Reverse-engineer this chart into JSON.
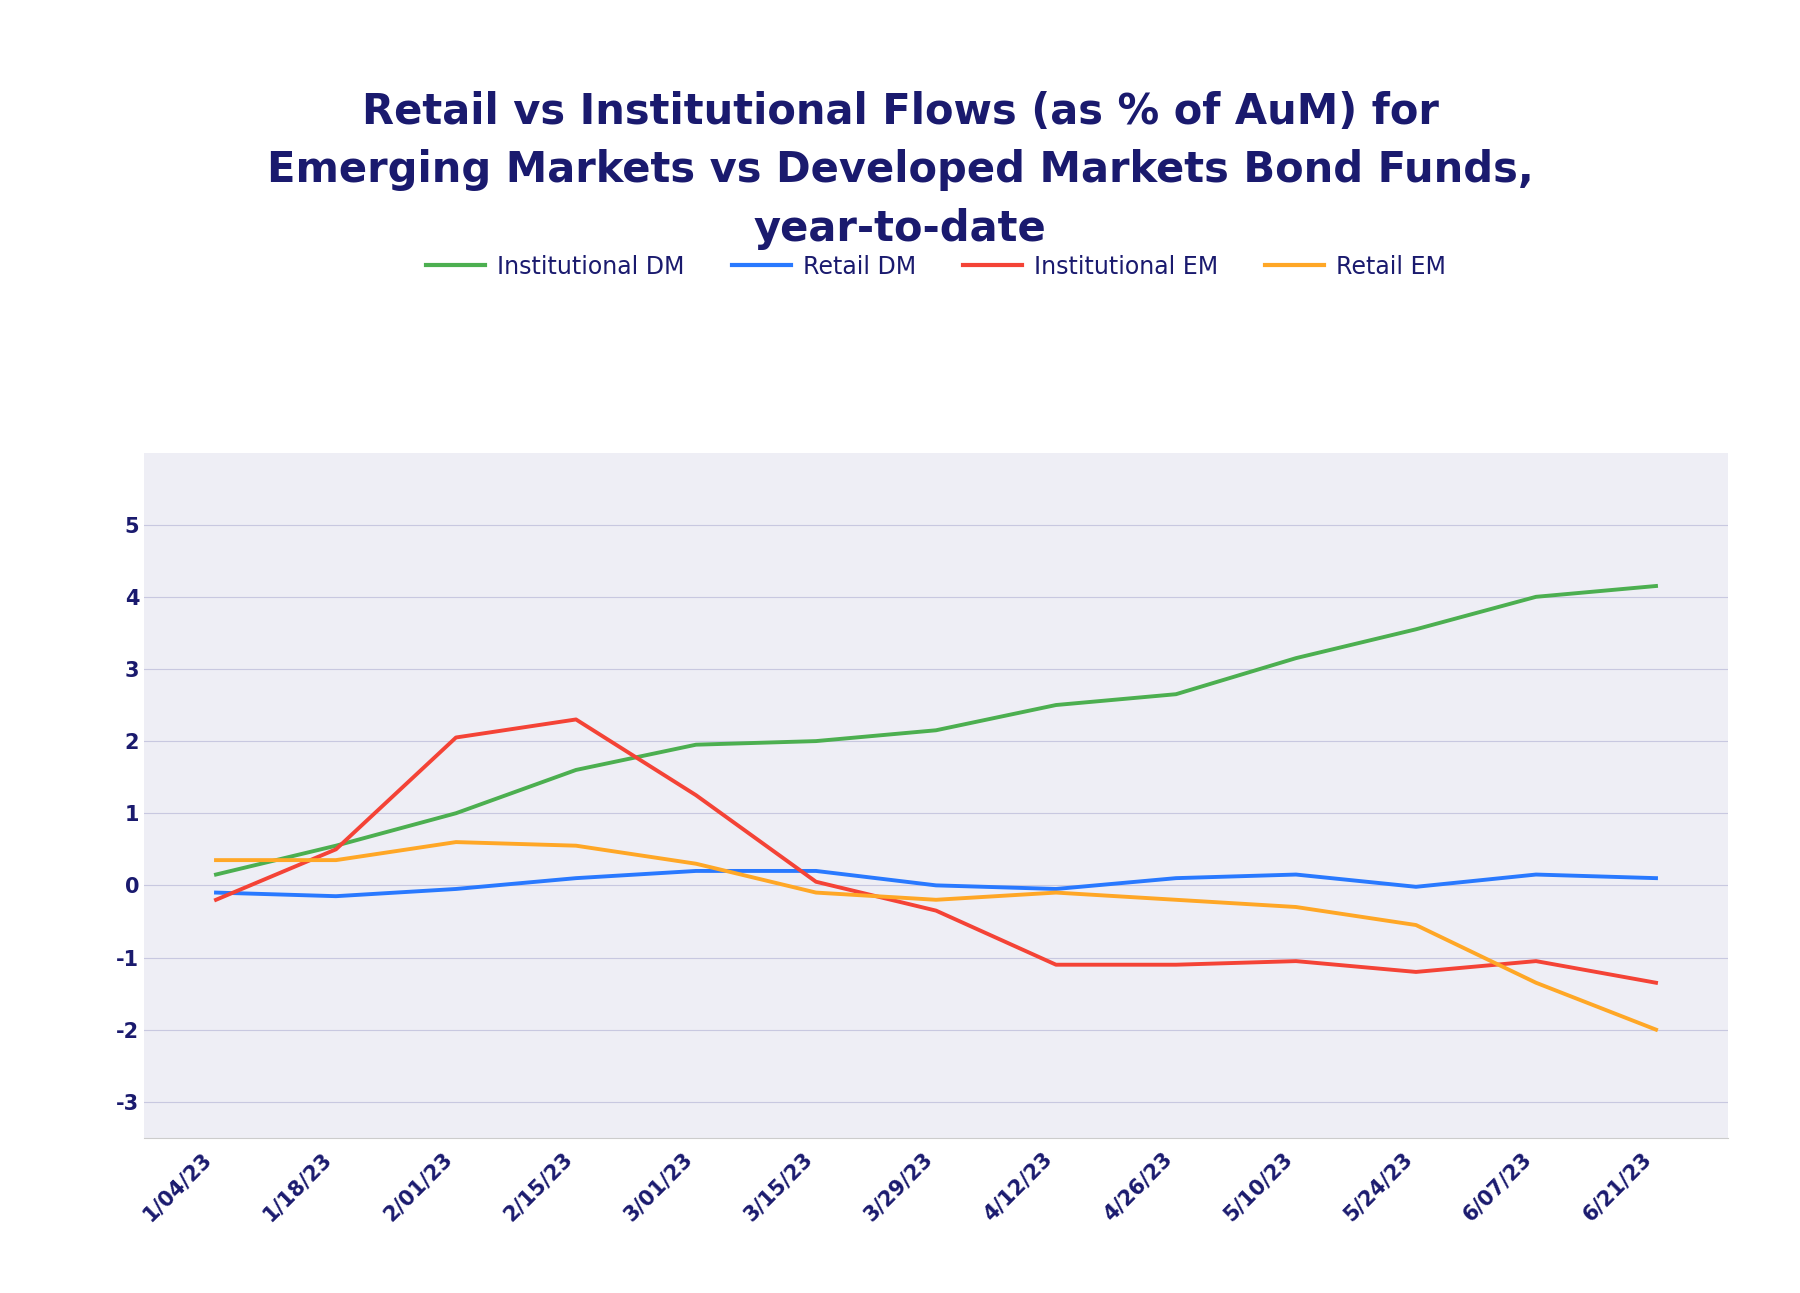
{
  "title": "Retail vs Institutional Flows (as % of AuM) for\nEmerging Markets vs Developed Markets Bond Funds,\nyear-to-date",
  "title_color": "#1a1a6e",
  "background_color": "#ffffff",
  "plot_background_color": "#eeeef5",
  "x_labels": [
    "1/04/23",
    "1/18/23",
    "2/01/23",
    "2/15/23",
    "3/01/23",
    "3/15/23",
    "3/29/23",
    "4/12/23",
    "4/26/23",
    "5/10/23",
    "5/24/23",
    "6/07/23",
    "6/21/23"
  ],
  "ylim": [
    -3.5,
    6.0
  ],
  "yticks": [
    -3,
    -2,
    -1,
    0,
    1,
    2,
    3,
    4,
    5
  ],
  "series": [
    {
      "label": "Institutional DM",
      "color": "#4caf50",
      "linewidth": 2.8,
      "data": [
        0.15,
        0.55,
        1.0,
        1.6,
        1.95,
        2.0,
        2.15,
        2.5,
        2.65,
        3.15,
        3.55,
        4.0,
        4.15
      ]
    },
    {
      "label": "Retail DM",
      "color": "#2979ff",
      "linewidth": 2.8,
      "data": [
        -0.1,
        -0.15,
        -0.05,
        0.1,
        0.2,
        0.2,
        0.0,
        -0.05,
        0.1,
        0.15,
        -0.02,
        0.15,
        0.1
      ]
    },
    {
      "label": "Institutional EM",
      "color": "#f44336",
      "linewidth": 2.8,
      "data": [
        -0.2,
        0.5,
        2.05,
        2.3,
        1.25,
        0.05,
        -0.35,
        -1.1,
        -1.1,
        -1.05,
        -1.2,
        -1.05,
        -1.35
      ]
    },
    {
      "label": "Retail EM",
      "color": "#ffa726",
      "linewidth": 2.8,
      "data": [
        0.35,
        0.35,
        0.6,
        0.55,
        0.3,
        -0.1,
        -0.2,
        -0.1,
        -0.2,
        -0.3,
        -0.55,
        -1.35,
        -2.0
      ]
    }
  ],
  "grid_color": "#c8c8e0",
  "grid_linewidth": 0.8,
  "tick_color": "#1a1a6e",
  "tick_fontsize": 15,
  "title_fontsize": 30,
  "legend_fontsize": 17
}
